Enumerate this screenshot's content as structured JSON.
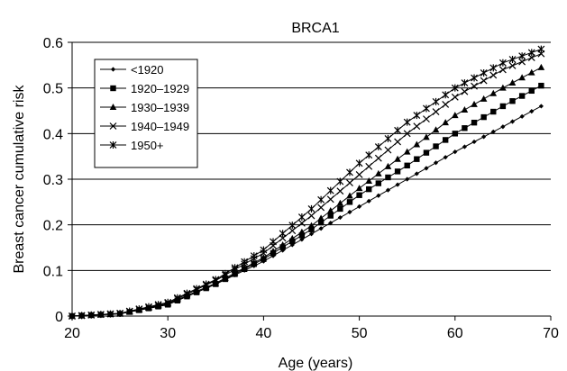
{
  "chart_data": {
    "type": "line",
    "title": "BRCA1",
    "xlabel": "Age (years)",
    "ylabel": "Breast cancer cumulative risk",
    "xlim": [
      20,
      70
    ],
    "ylim": [
      0,
      0.6
    ],
    "x_ticks": [
      20,
      30,
      40,
      50,
      60,
      70
    ],
    "y_ticks": [
      0,
      0.1,
      0.2,
      0.3,
      0.4,
      0.5,
      0.6
    ],
    "grid": "horizontal",
    "legend_position": "top-left",
    "x": [
      20,
      25,
      30,
      35,
      40,
      45,
      50,
      55,
      60,
      65,
      69
    ],
    "series": [
      {
        "name": "<1920",
        "marker": "diamond",
        "values": [
          0,
          0.005,
          0.025,
          0.07,
          0.12,
          0.18,
          0.24,
          0.3,
          0.36,
          0.415,
          0.46
        ]
      },
      {
        "name": "1920–1929",
        "marker": "square",
        "values": [
          0,
          0.005,
          0.025,
          0.07,
          0.125,
          0.19,
          0.265,
          0.33,
          0.4,
          0.46,
          0.505
        ]
      },
      {
        "name": "1930–1939",
        "marker": "triangle",
        "values": [
          0,
          0.005,
          0.027,
          0.072,
          0.128,
          0.198,
          0.28,
          0.36,
          0.44,
          0.5,
          0.545
        ]
      },
      {
        "name": "1940–1949",
        "marker": "x",
        "values": [
          0,
          0.006,
          0.028,
          0.078,
          0.138,
          0.22,
          0.31,
          0.4,
          0.48,
          0.54,
          0.575
        ]
      },
      {
        "name": "1950+",
        "marker": "star",
        "values": [
          0,
          0.006,
          0.03,
          0.08,
          0.145,
          0.235,
          0.335,
          0.425,
          0.5,
          0.555,
          0.585
        ]
      }
    ]
  }
}
